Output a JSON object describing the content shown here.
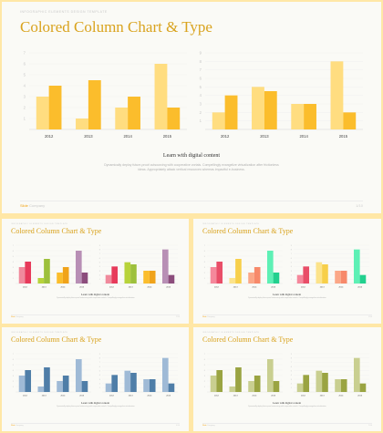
{
  "slides": [
    {
      "subheading": "INFOGRAPHIC ELEMENTS DESIGN TEMPLATE",
      "title": "Colored Column Chart & Type",
      "caption_title": "Learn with digital content",
      "caption_body": "Dynamically deploy future-proof outsourcing with cooperative vortals. Compellingly evangelize virtualization after frictionless ideas. Appropriately attack vertical resources whereas impactful e-business.",
      "footer_brand_accent": "Slide",
      "footer_brand_rest": "Company",
      "page": "1/10",
      "colors": {
        "light": "#ffdd80",
        "dark": "#fbbd2c"
      }
    },
    {
      "subheading": "INFOGRAPHIC ELEMENTS DESIGN TEMPLATE",
      "title": "Colored Column Chart & Type",
      "caption_title": "Learn with digital content",
      "caption_body": "Dynamically deploy future-proof outsourcing with cooperative vortals. Compellingly evangelize virtualization.",
      "footer_brand_accent": "Slide",
      "footer_brand_rest": "Company",
      "page": "2/10",
      "colors": {
        "bar_pairs": [
          [
            "#f08a9c",
            "#e73a5a"
          ],
          [
            "#b7d33a",
            "#9dc03c"
          ],
          [
            "#fbbd2c",
            "#f0a31a"
          ],
          [
            "#b88fb5",
            "#8c4d7c"
          ]
        ]
      }
    },
    {
      "subheading": "INFOGRAPHIC ELEMENTS DESIGN TEMPLATE",
      "title": "Colored Column Chart & Type",
      "caption_title": "Learn with digital content",
      "caption_body": "Dynamically deploy future-proof outsourcing with cooperative vortals. Compellingly evangelize virtualization.",
      "footer_brand_accent": "Slide",
      "footer_brand_rest": "Company",
      "page": "3/10",
      "colors": {
        "bar_pairs": [
          [
            "#f5889b",
            "#e94e68"
          ],
          [
            "#fce38a",
            "#f7cf4a"
          ],
          [
            "#fba787",
            "#f7896a"
          ],
          [
            "#5ef0b5",
            "#22d08e"
          ]
        ]
      }
    },
    {
      "subheading": "INFOGRAPHIC ELEMENTS DESIGN TEMPLATE",
      "title": "Colored Column Chart & Type",
      "caption_title": "Learn with digital content",
      "caption_body": "Dynamically deploy future-proof outsourcing with cooperative vortals. Compellingly evangelize virtualization.",
      "footer_brand_accent": "Slide",
      "footer_brand_rest": "Company",
      "page": "4/10",
      "colors": {
        "light": "#9fbad6",
        "dark": "#4f7ea8"
      }
    },
    {
      "subheading": "INFOGRAPHIC ELEMENTS DESIGN TEMPLATE",
      "title": "Colored Column Chart & Type",
      "caption_title": "Learn with digital content",
      "caption_body": "Dynamically deploy future-proof outsourcing with cooperative vortals. Compellingly evangelize virtualization.",
      "footer_brand_accent": "Slide",
      "footer_brand_rest": "Company",
      "page": "5/10",
      "colors": {
        "light": "#c9cf90",
        "dark": "#9aa442"
      }
    }
  ],
  "chart_data": [
    {
      "type": "bar",
      "categories": [
        "2012",
        "2013",
        "2014",
        "2015"
      ],
      "series": [
        {
          "values": [
            3,
            1,
            2,
            6
          ]
        },
        {
          "values": [
            4,
            4.5,
            3,
            2
          ]
        }
      ],
      "y_ticks": [
        "7",
        "6",
        "5",
        "4",
        "3",
        "2",
        "1"
      ],
      "ylim": [
        0,
        7
      ]
    },
    {
      "type": "bar",
      "categories": [
        "2012",
        "2013",
        "2014",
        "2015"
      ],
      "series": [
        {
          "values": [
            2,
            5,
            3,
            8
          ]
        },
        {
          "values": [
            4,
            4.5,
            3,
            2
          ]
        }
      ],
      "y_ticks": [
        "9",
        "8",
        "7",
        "6",
        "5",
        "4",
        "3",
        "2",
        "1"
      ],
      "ylim": [
        0,
        9
      ]
    }
  ]
}
